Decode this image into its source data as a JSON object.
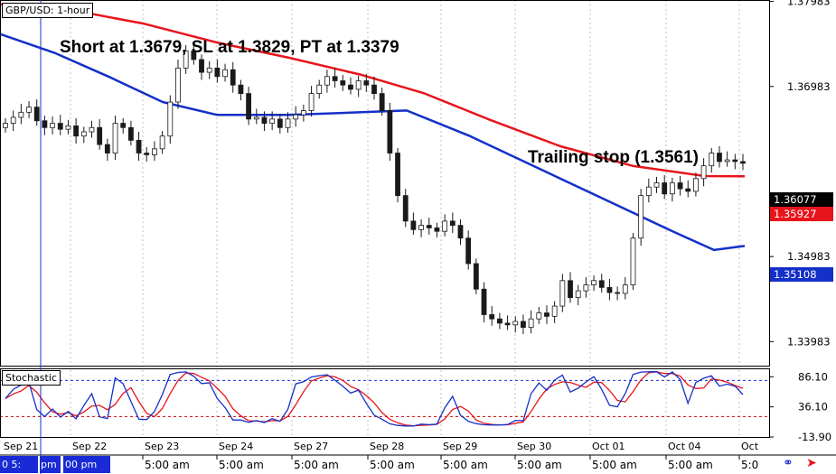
{
  "header": {
    "title": "GBP/USD: 1-hour"
  },
  "annotations": {
    "trade": "Short at 1.3679, SL at 1.3829, PT at 1.3379",
    "trailing": "Trailing stop (1.3561)"
  },
  "oscillator": {
    "title": "Stochastic"
  },
  "price_tags": {
    "last": "1.36077",
    "red_ma": "1.35927",
    "blue_ma": "1.35108"
  },
  "cursor": {
    "left_label": "0 5:",
    "time_label_a": "pm",
    "time_label_b": "00 pm",
    "color": "#1a2bd6"
  },
  "colors": {
    "red_ma": "#e8141c",
    "blue_ma": "#1330c8",
    "candle": "#1a1a1a",
    "grid": "#c0c0c0",
    "stoch_level": "#1a2bd6",
    "stoch_low": "#cc0000"
  },
  "icons": {
    "link": "link-icon",
    "arrow": "arrow-icon"
  },
  "chart_data": {
    "type": "candlestick",
    "title": "GBP/USD: 1-hour",
    "y_ticks": [
      "1.37983",
      "1.36983",
      "1.34983",
      "1.33983"
    ],
    "ylim": [
      1.337,
      1.38
    ],
    "x_date_labels": [
      "Sep 21",
      "Sep 22",
      "Sep 23",
      "Sep 24",
      "Sep 27",
      "Sep 28",
      "Sep 29",
      "Sep 30",
      "Oct 01",
      "Oct 04",
      "Oct"
    ],
    "x_time_labels": [
      "5:00 am",
      "5:00 am",
      "5:00 am",
      "5:00 am",
      "5:00 am",
      "5:00 am",
      "5:00 am",
      "5:00 am",
      "5:00 am",
      "5:0"
    ],
    "close_series": [
      1.3655,
      1.3662,
      1.3668,
      1.3674,
      1.3658,
      1.365,
      1.3655,
      1.3648,
      1.3652,
      1.364,
      1.3645,
      1.365,
      1.363,
      1.362,
      1.3655,
      1.365,
      1.3635,
      1.362,
      1.3618,
      1.3625,
      1.364,
      1.368,
      1.372,
      1.374,
      1.373,
      1.3715,
      1.372,
      1.371,
      1.3718,
      1.37,
      1.369,
      1.366,
      1.3662,
      1.3655,
      1.366,
      1.365,
      1.366,
      1.3665,
      1.367,
      1.369,
      1.37,
      1.371,
      1.3705,
      1.37,
      1.3695,
      1.3705,
      1.37,
      1.369,
      1.367,
      1.362,
      1.357,
      1.354,
      1.353,
      1.3535,
      1.3532,
      1.3528,
      1.354,
      1.3535,
      1.352,
      1.349,
      1.346,
      1.343,
      1.3425,
      1.342,
      1.3418,
      1.3422,
      1.3415,
      1.3425,
      1.3432,
      1.3428,
      1.344,
      1.347,
      1.345,
      1.3458,
      1.3465,
      1.347,
      1.3462,
      1.3456,
      1.3455,
      1.3465,
      1.352,
      1.357,
      1.358,
      1.3585,
      1.3572,
      1.3585,
      1.3578,
      1.3575,
      1.359,
      1.3605,
      1.362,
      1.361,
      1.3612,
      1.361,
      1.3608
    ],
    "series": [
      {
        "name": "",
        "color": "#e8141c",
        "first": 1.3795,
        "last": 1.35927
      },
      {
        "name": "",
        "color": "#1330c8",
        "first": 1.376,
        "last": 1.35108
      }
    ],
    "stochastic": {
      "levels": [
        80,
        20
      ],
      "y_ticks": [
        "86.10",
        "36.10",
        "-13.90"
      ],
      "ylim": [
        -13.9,
        100
      ]
    }
  }
}
